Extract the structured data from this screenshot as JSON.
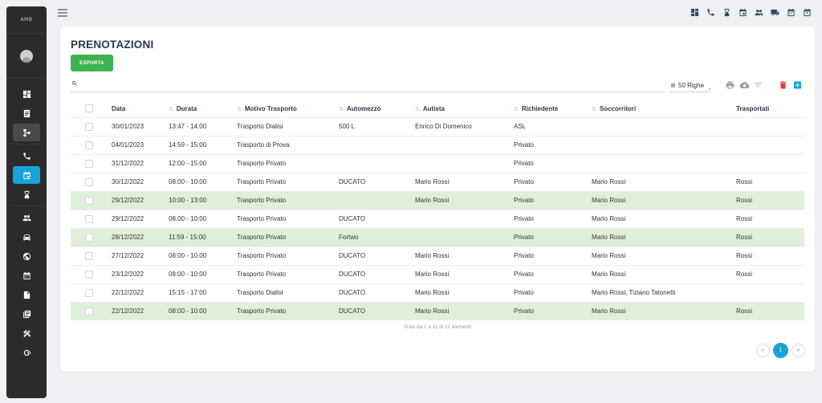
{
  "sidebar": {
    "logo": "AMB",
    "items": [
      {
        "icon": "dashboard-icon"
      },
      {
        "icon": "document-icon"
      },
      {
        "icon": "hierarchy-icon"
      },
      {
        "icon": "phone-icon"
      },
      {
        "icon": "calendar-icon"
      },
      {
        "icon": "hourglass-icon"
      },
      {
        "icon": "people-icon"
      },
      {
        "icon": "car-icon"
      },
      {
        "icon": "globe-icon"
      },
      {
        "icon": "calendar-grid-icon"
      },
      {
        "icon": "file-icon"
      },
      {
        "icon": "copy-icon"
      },
      {
        "icon": "tools-icon"
      },
      {
        "icon": "logout-icon"
      }
    ],
    "active_item": "calendar-icon",
    "accent": "#1aa3d9"
  },
  "topbar": {
    "icons": [
      "dashboard-icon",
      "phone-icon",
      "hourglass-icon",
      "calendar-check-icon",
      "people-icon",
      "truck-icon",
      "calendar-icon",
      "calendar-x-icon"
    ]
  },
  "page": {
    "title": "PRENOTAZIONI",
    "export_label": "ESPORTA",
    "search_placeholder": "",
    "rows_label": "50 Righe",
    "footer_info": "Vista da 1 a 11 di 11 elementi",
    "pagination": {
      "prev": "<",
      "current": "1",
      "next": ">"
    }
  },
  "table": {
    "columns": [
      "Data",
      "Durata",
      "Motivo Trasporto",
      "Automezzo",
      "Autista",
      "Richiedente",
      "Soccorritori",
      "Trasportati"
    ],
    "rows": [
      {
        "data": "30/01/2023",
        "durata": "13:47 - 14:00",
        "motivo": "Trasporto Dialisi",
        "automezzo": "500 L",
        "autista": "Enrico Di Domenico",
        "richiedente": "ASL",
        "soccorritori": "",
        "trasportati": "",
        "highlight": false
      },
      {
        "data": "04/01/2023",
        "durata": "14:59 - 15:00",
        "motivo": "Trasporto di Prova",
        "automezzo": "",
        "autista": "",
        "richiedente": "Privato",
        "soccorritori": "",
        "trasportati": "",
        "highlight": false
      },
      {
        "data": "31/12/2022",
        "durata": "12:00 - 15:00",
        "motivo": "Trasporto Privato",
        "automezzo": "",
        "autista": "",
        "richiedente": "Privato",
        "soccorritori": "",
        "trasportati": "",
        "highlight": false
      },
      {
        "data": "30/12/2022",
        "durata": "08:00 - 10:00",
        "motivo": "Trasporto Privato",
        "automezzo": "DUCATO",
        "autista": "Mario Rossi",
        "richiedente": "Privato",
        "soccorritori": "Mario Rossi",
        "trasportati": "Rossi",
        "highlight": false
      },
      {
        "data": "29/12/2022",
        "durata": "10:00 - 13:00",
        "motivo": "Trasporto Privato",
        "automezzo": "",
        "autista": "Mario Rossi",
        "richiedente": "Privato",
        "soccorritori": "Mario Rossi",
        "trasportati": "Rossi",
        "highlight": true
      },
      {
        "data": "29/12/2022",
        "durata": "08:00 - 10:00",
        "motivo": "Trasporto Privato",
        "automezzo": "DUCATO",
        "autista": "",
        "richiedente": "Privato",
        "soccorritori": "Mario Rossi",
        "trasportati": "Rossi",
        "highlight": false
      },
      {
        "data": "28/12/2022",
        "durata": "11:59 - 15:00",
        "motivo": "Trasporto Privato",
        "automezzo": "Fortwo",
        "autista": "",
        "richiedente": "Privato",
        "soccorritori": "Mario Rossi",
        "trasportati": "Rossi",
        "highlight": true
      },
      {
        "data": "27/12/2022",
        "durata": "08:00 - 10:00",
        "motivo": "Trasporto Privato",
        "automezzo": "DUCATO",
        "autista": "Mario Rossi",
        "richiedente": "Privato",
        "soccorritori": "Mario Rossi",
        "trasportati": "Rossi",
        "highlight": false
      },
      {
        "data": "23/12/2022",
        "durata": "08:00 - 10:00",
        "motivo": "Trasporto Privato",
        "automezzo": "DUCATO",
        "autista": "Mario Rossi",
        "richiedente": "Privato",
        "soccorritori": "Mario Rossi",
        "trasportati": "Rossi",
        "highlight": false
      },
      {
        "data": "22/12/2022",
        "durata": "15:15 - 17:00",
        "motivo": "Trasporto Dialisi",
        "automezzo": "DUCATO",
        "autista": "Mario Rossi",
        "richiedente": "Privato",
        "soccorritori": "Mario Rossi, Tiziano Tatonetti",
        "trasportati": "",
        "highlight": false
      },
      {
        "data": "22/12/2022",
        "durata": "08:00 - 10:00",
        "motivo": "Trasporto Privato",
        "automezzo": "DUCATO",
        "autista": "Mario Rossi",
        "richiedente": "Privato",
        "soccorritori": "Mario Rossi",
        "trasportati": "Rossi",
        "highlight": true
      }
    ],
    "highlight_color": "#dff0d8"
  },
  "colors": {
    "export_button": "#3fb24f",
    "delete_icon": "#e53935",
    "add_icon": "#1aa3d9"
  }
}
